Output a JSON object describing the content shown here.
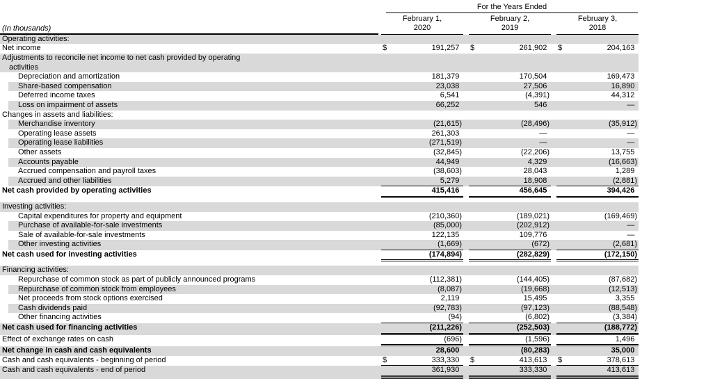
{
  "currency_symbol": "$",
  "header": {
    "in_thousands_note": "(In thousands)",
    "years_ended_label": "For the Years Ended",
    "columns": [
      {
        "line1": "February 1,",
        "line2": "2020"
      },
      {
        "line1": "February 2,",
        "line2": "2019"
      },
      {
        "line1": "February 3,",
        "line2": "2018"
      }
    ]
  },
  "rows": [
    {
      "label": "Operating activities:",
      "indent": 0,
      "shaded": true,
      "bold": false,
      "values": null
    },
    {
      "label": "Net income",
      "indent": 0,
      "shaded": false,
      "bold": false,
      "dollar": true,
      "values": [
        "191,257",
        "261,902",
        "204,163"
      ]
    },
    {
      "label": "Adjustments to reconcile net income to net cash provided by operating",
      "label2": "activities",
      "indent": 0,
      "shaded": true,
      "bold": false,
      "values": null
    },
    {
      "label": "Depreciation and amortization",
      "indent": 1,
      "shaded": false,
      "bold": false,
      "values": [
        "181,379",
        "170,504",
        "169,473"
      ]
    },
    {
      "label": "Share-based compensation",
      "indent": 1,
      "shaded": true,
      "bold": false,
      "values": [
        "23,038",
        "27,506",
        "16,890"
      ]
    },
    {
      "label": "Deferred income taxes",
      "indent": 1,
      "shaded": false,
      "bold": false,
      "values": [
        "6,541",
        "(4,391)",
        "44,312"
      ]
    },
    {
      "label": "Loss on impairment of assets",
      "indent": 1,
      "shaded": true,
      "bold": false,
      "values": [
        "66,252",
        "546",
        "—"
      ]
    },
    {
      "label": "Changes in assets and liabilities:",
      "indent": 0,
      "shaded": false,
      "bold": false,
      "values": null
    },
    {
      "label": "Merchandise inventory",
      "indent": 1,
      "shaded": true,
      "bold": false,
      "values": [
        "(21,615)",
        "(28,496)",
        "(35,912)"
      ]
    },
    {
      "label": "Operating lease assets",
      "indent": 1,
      "shaded": false,
      "bold": false,
      "values": [
        "261,303",
        "—",
        "—"
      ]
    },
    {
      "label": "Operating lease liabilities",
      "indent": 1,
      "shaded": true,
      "bold": false,
      "values": [
        "(271,519)",
        "—",
        "—"
      ]
    },
    {
      "label": "Other assets",
      "indent": 1,
      "shaded": false,
      "bold": false,
      "values": [
        "(32,845)",
        "(22,206)",
        "13,755"
      ]
    },
    {
      "label": "Accounts payable",
      "indent": 1,
      "shaded": true,
      "bold": false,
      "values": [
        "44,949",
        "4,329",
        "(16,663)"
      ]
    },
    {
      "label": "Accrued compensation and payroll taxes",
      "indent": 1,
      "shaded": false,
      "bold": false,
      "values": [
        "(38,603)",
        "28,043",
        "1,289"
      ]
    },
    {
      "label": "Accrued and other liabilities",
      "indent": 1,
      "shaded": true,
      "bold": false,
      "rule": "single",
      "values": [
        "5,279",
        "18,908",
        "(2,881)"
      ]
    },
    {
      "label": "Net cash provided by operating activities",
      "indent": 0,
      "shaded": false,
      "bold": true,
      "rule": "double",
      "values": [
        "415,416",
        "456,645",
        "394,426"
      ]
    },
    {
      "label": "Investing activities:",
      "indent": 0,
      "shaded": true,
      "bold": false,
      "gap_before": true,
      "values": null
    },
    {
      "label": "Capital expenditures for property and equipment",
      "indent": 1,
      "shaded": false,
      "bold": false,
      "values": [
        "(210,360)",
        "(189,021)",
        "(169,469)"
      ]
    },
    {
      "label": "Purchase of available-for-sale investments",
      "indent": 1,
      "shaded": true,
      "bold": false,
      "values": [
        "(85,000)",
        "(202,912)",
        "—"
      ]
    },
    {
      "label": "Sale of available-for-sale investments",
      "indent": 1,
      "shaded": false,
      "bold": false,
      "values": [
        "122,135",
        "109,776",
        "—"
      ]
    },
    {
      "label": "Other investing activities",
      "indent": 1,
      "shaded": true,
      "bold": false,
      "rule": "single",
      "values": [
        "(1,669)",
        "(672)",
        "(2,681)"
      ]
    },
    {
      "label": "Net cash used for investing activities",
      "indent": 0,
      "shaded": false,
      "bold": true,
      "rule": "double",
      "values": [
        "(174,894)",
        "(282,829)",
        "(172,150)"
      ]
    },
    {
      "label": "Financing activities:",
      "indent": 0,
      "shaded": true,
      "bold": false,
      "gap_before": true,
      "values": null
    },
    {
      "label": "Repurchase of common stock as part of publicly announced programs",
      "indent": 1,
      "shaded": false,
      "bold": false,
      "values": [
        "(112,381)",
        "(144,405)",
        "(87,682)"
      ]
    },
    {
      "label": "Repurchase of common stock from employees",
      "indent": 1,
      "shaded": true,
      "bold": false,
      "values": [
        "(8,087)",
        "(19,668)",
        "(12,513)"
      ]
    },
    {
      "label": "Net proceeds from stock options exercised",
      "indent": 1,
      "shaded": false,
      "bold": false,
      "values": [
        "2,119",
        "15,495",
        "3,355"
      ]
    },
    {
      "label": "Cash dividends paid",
      "indent": 1,
      "shaded": true,
      "bold": false,
      "values": [
        "(92,783)",
        "(97,123)",
        "(88,548)"
      ]
    },
    {
      "label": "Other financing activities",
      "indent": 1,
      "shaded": false,
      "bold": false,
      "rule": "single",
      "values": [
        "(94)",
        "(6,802)",
        "(3,384)"
      ]
    },
    {
      "label": "Net cash used for financing activities",
      "indent": 0,
      "shaded": true,
      "bold": true,
      "rule": "double",
      "values": [
        "(211,226)",
        "(252,503)",
        "(188,772)"
      ]
    },
    {
      "label": "Effect of exchange rates on cash",
      "indent": 0,
      "shaded": false,
      "bold": false,
      "rule": "double",
      "values": [
        "(696)",
        "(1,596)",
        "1,496"
      ]
    },
    {
      "label": "Net change in cash and cash equivalents",
      "indent": 0,
      "shaded": true,
      "bold": true,
      "values": [
        "28,600",
        "(80,283)",
        "35,000"
      ]
    },
    {
      "label": "Cash and cash equivalents - beginning of period",
      "indent": 0,
      "shaded": false,
      "bold": false,
      "dollar": true,
      "rule": "single",
      "values": [
        "333,330",
        "413,613",
        "378,613"
      ]
    },
    {
      "label": "Cash and cash equivalents - end of period",
      "indent": 0,
      "shaded": true,
      "bold": false,
      "rule": "thick",
      "values": [
        "361,930",
        "333,330",
        "413,613"
      ]
    }
  ]
}
